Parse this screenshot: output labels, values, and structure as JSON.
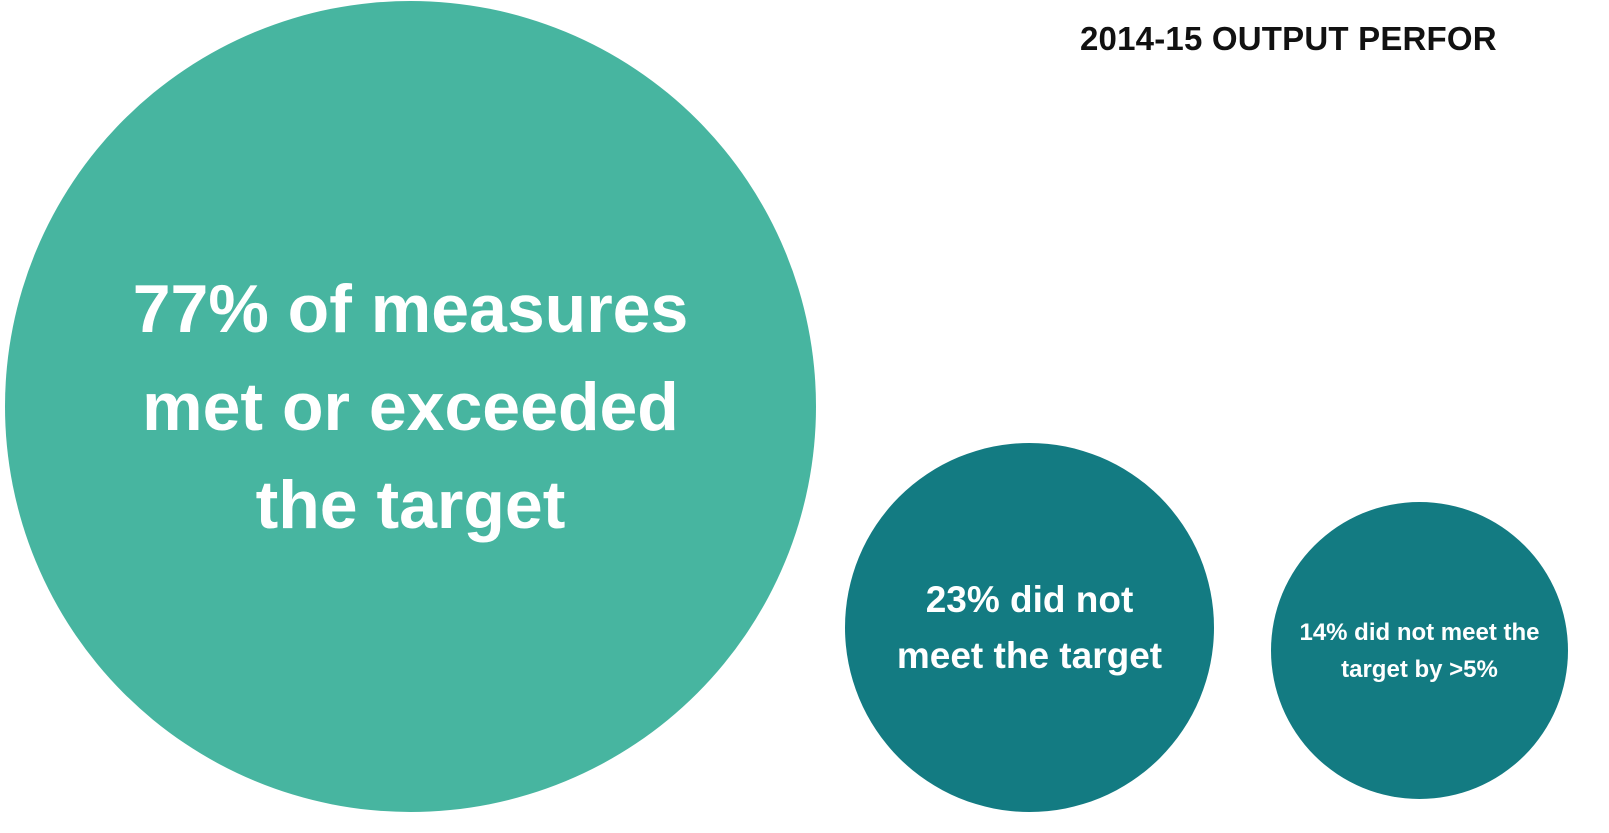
{
  "title": "2014-15 OUTPUT PERFOR",
  "chart_data": {
    "type": "bubble",
    "series": [
      {
        "label": "77% of measures met or exceeded the target",
        "value": 77,
        "color": "#47b5a0"
      },
      {
        "label": "23% did not meet the target",
        "value": 23,
        "color": "#137b82"
      },
      {
        "label": "14% did not meet the target by >5%",
        "value": 14,
        "color": "#137b82"
      }
    ]
  }
}
